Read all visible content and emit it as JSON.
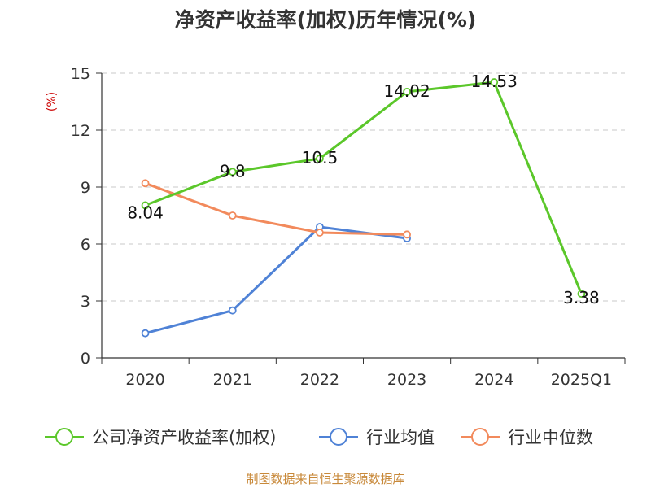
{
  "chart_data": {
    "type": "line",
    "title": "净资产收益率(加权)历年情况(%)",
    "ylabel": "(%)",
    "xlabel": "",
    "categories": [
      "2020",
      "2021",
      "2022",
      "2023",
      "2024",
      "2025Q1"
    ],
    "ylim": [
      0,
      15
    ],
    "yticks": [
      0,
      3,
      6,
      9,
      12,
      15
    ],
    "grid": true,
    "legend_position": "bottom",
    "series": [
      {
        "name": "公司净资产收益率(加权)",
        "color": "#5bc72a",
        "values": [
          8.04,
          9.8,
          10.5,
          14.02,
          14.53,
          3.38
        ],
        "labels": [
          "8.04",
          "9.8",
          "10.5",
          "14.02",
          "14.53",
          "3.38"
        ]
      },
      {
        "name": "行业均值",
        "color": "#4f82d6",
        "values": [
          1.3,
          2.5,
          6.9,
          6.3,
          null,
          null
        ]
      },
      {
        "name": "行业中位数",
        "color": "#f28a5c",
        "values": [
          9.2,
          7.5,
          6.6,
          6.5,
          null,
          null
        ]
      }
    ]
  },
  "source_note": "制图数据来自恒生聚源数据库"
}
